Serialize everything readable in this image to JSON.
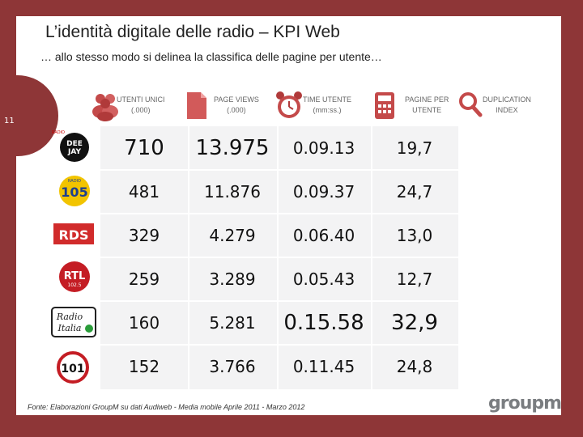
{
  "slide": {
    "title": "L’identità digitale delle radio – KPI Web",
    "subtitle": "… allo stesso modo si delinea la classifica delle pagine per utente…",
    "page_number": "11",
    "source": "Fonte: Elaborazioni GroupM su dati Audiweb - Media mobile Aprile 2011 - Marzo 2012",
    "brand": "groupm"
  },
  "columns": [
    {
      "label_1": "UTENTI UNICI",
      "label_2": "(.000)",
      "icon": "users-icon"
    },
    {
      "label_1": "PAGE VIEWS",
      "label_2": "(.000)",
      "icon": "page-icon"
    },
    {
      "label_1": "TIME UTENTE",
      "label_2": "(mm:ss.)",
      "icon": "alarm-clock-icon"
    },
    {
      "label_1": "PAGINE PER",
      "label_2": "UTENTE",
      "icon": "calculator-icon"
    },
    {
      "label_1": "DUPLICATION",
      "label_2": "INDEX",
      "icon": "magnifier-icon"
    }
  ],
  "rows": [
    {
      "station": "Radio Deejay",
      "logo_text": "DEE JAY",
      "utenti": "710",
      "page_views": "13.975",
      "time": "0.09.13",
      "pagine": "19,7"
    },
    {
      "station": "Radio 105",
      "logo_text": "105",
      "utenti": "481",
      "page_views": "11.876",
      "time": "0.09.37",
      "pagine": "24,7"
    },
    {
      "station": "RDS",
      "logo_text": "RDS",
      "utenti": "329",
      "page_views": "4.279",
      "time": "0.06.40",
      "pagine": "13,0"
    },
    {
      "station": "RTL 102.5",
      "logo_text": "RTL",
      "utenti": "259",
      "page_views": "3.289",
      "time": "0.05.43",
      "pagine": "12,7"
    },
    {
      "station": "Radio Italia",
      "logo_text": "Radio Italia",
      "utenti": "160",
      "page_views": "5.281",
      "time": "0.15.58",
      "pagine": "32,9"
    },
    {
      "station": "R101",
      "logo_text": "101",
      "utenti": "152",
      "page_views": "3.766",
      "time": "0.11.45",
      "pagine": "24,8"
    }
  ],
  "colors": {
    "frame": "#8e3637",
    "grid": "#f3f3f4",
    "icon_red": "#c44a4a",
    "brand_grey": "#7a7d80"
  }
}
